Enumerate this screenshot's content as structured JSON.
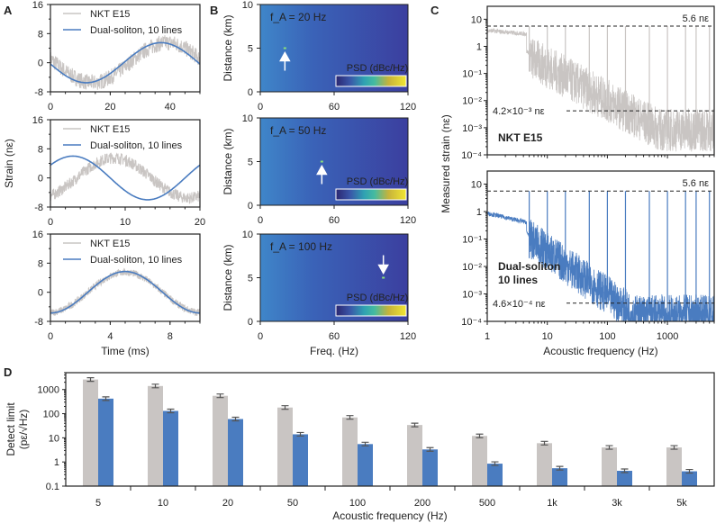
{
  "panels": [
    "A",
    "B",
    "C",
    "D"
  ],
  "chart_data": [
    {
      "id": "A1",
      "type": "line",
      "xlim": [
        0,
        50
      ],
      "ylim": [
        -8,
        16
      ],
      "xticks": [
        "0",
        "20",
        "40"
      ],
      "yticks": [
        "-8",
        "0",
        "8",
        "16"
      ],
      "legend": [
        "NKT E15",
        "Dual-soliton, 10 lines"
      ],
      "legend_position": "top",
      "series": [
        {
          "name": "NKT E15",
          "amplitude": 5.5,
          "period": 50,
          "peak_at": 39,
          "offset": 0,
          "noise": 2.2
        },
        {
          "name": "Dual-soliton, 10 lines",
          "amplitude": 5.5,
          "period": 50,
          "peak_at": 37,
          "offset": 0,
          "noise": 0
        }
      ]
    },
    {
      "id": "A2",
      "type": "line",
      "xlim": [
        0,
        20
      ],
      "ylim": [
        -8,
        16
      ],
      "xticks": [
        "0",
        "10",
        "20"
      ],
      "yticks": [
        "-8",
        "0",
        "8",
        "16"
      ],
      "ylabel": "Strain (nε)",
      "legend": [
        "NKT E15",
        "Dual-soliton, 10 lines"
      ],
      "legend_position": "top",
      "series": [
        {
          "name": "NKT E15",
          "amplitude": 5.5,
          "period": 20,
          "peak_at": 8.5,
          "offset": 0,
          "noise": 1.6
        },
        {
          "name": "Dual-soliton, 10 lines",
          "amplitude": 6,
          "period": 20,
          "peak_at": 3,
          "offset": 0,
          "noise": 0
        }
      ]
    },
    {
      "id": "A3",
      "type": "line",
      "xlim": [
        0,
        10
      ],
      "ylim": [
        -8,
        16
      ],
      "xticks": [
        "0",
        "4",
        "8"
      ],
      "yticks": [
        "-8",
        "0",
        "8",
        "16"
      ],
      "xlabel": "Time (ms)",
      "legend": [
        "NKT E15",
        "Dual-soliton, 10 lines"
      ],
      "legend_position": "top",
      "series": [
        {
          "name": "NKT E15",
          "amplitude": 5.5,
          "period": 10,
          "peak_at": 5,
          "offset": 0,
          "noise": 1.0
        },
        {
          "name": "Dual-soliton, 10 lines",
          "amplitude": 5.7,
          "period": 10,
          "peak_at": 5,
          "offset": 0,
          "noise": 0
        }
      ]
    },
    {
      "id": "B1",
      "type": "heatmap",
      "annotation": "f_A = 20 Hz",
      "f_A_hz": 20,
      "signal_distance_km": 5,
      "xlim": [
        0,
        120
      ],
      "ylim": [
        0,
        10
      ],
      "xticks": [
        "0",
        "60",
        "120"
      ],
      "yticks": [
        "0",
        "5",
        "10"
      ],
      "ylabel": "Distance (km)",
      "colorbar_label": "PSD (dBc/Hz)",
      "arrow": "up"
    },
    {
      "id": "B2",
      "type": "heatmap",
      "annotation": "f_A = 50 Hz",
      "f_A_hz": 50,
      "signal_distance_km": 5,
      "xlim": [
        0,
        120
      ],
      "ylim": [
        0,
        10
      ],
      "xticks": [
        "0",
        "60",
        "120"
      ],
      "yticks": [
        "0",
        "5",
        "10"
      ],
      "ylabel": "Distance (km)",
      "colorbar_label": "PSD (dBc/Hz)",
      "arrow": "up"
    },
    {
      "id": "B3",
      "type": "heatmap",
      "annotation": "f_A = 100 Hz",
      "f_A_hz": 100,
      "signal_distance_km": 5,
      "xlim": [
        0,
        120
      ],
      "ylim": [
        0,
        10
      ],
      "xticks": [
        "0",
        "60",
        "120"
      ],
      "yticks": [
        "0",
        "5",
        "10"
      ],
      "ylabel": "Distance (km)",
      "xlabel": "Freq. (Hz)",
      "colorbar_label": "PSD (dBc/Hz)",
      "arrow": "down"
    },
    {
      "id": "C1",
      "type": "line",
      "xscale": "log",
      "yscale": "log",
      "xlim": [
        1,
        6000
      ],
      "ylim": [
        0.0001,
        30
      ],
      "yticks": [
        "10",
        "1",
        "10⁻¹",
        "10⁻²",
        "10⁻³",
        "10⁻⁴"
      ],
      "series_label": "NKT E15",
      "ref_lines": [
        {
          "value": 5.6,
          "label": "5.6 nε"
        },
        {
          "value": 0.0042,
          "label": "4.2×10⁻³ nε"
        }
      ],
      "peaks_hz": [
        5,
        10,
        20,
        50,
        100,
        200,
        500,
        1000,
        2000,
        3000,
        5000
      ],
      "noise_floor": {
        "start": 0.5,
        "end": 0.0015
      }
    },
    {
      "id": "C2",
      "type": "line",
      "xscale": "log",
      "yscale": "log",
      "xlim": [
        1,
        6000
      ],
      "ylim": [
        0.0001,
        30
      ],
      "xticks": [
        "1",
        "10",
        "100",
        "1000"
      ],
      "yticks": [
        "10",
        "1",
        "10⁻¹",
        "10⁻²",
        "10⁻³",
        "10⁻⁴"
      ],
      "xlabel": "Acoustic frequency (Hz)",
      "ylabel": "Measured strain (nε)",
      "series_label": [
        "Dual-soliton",
        "10 lines"
      ],
      "ref_lines": [
        {
          "value": 5.6,
          "label": "5.6 nε"
        },
        {
          "value": 0.00046,
          "label": "4.6×10⁻⁴ nε"
        }
      ],
      "peaks_hz": [
        5,
        10,
        20,
        50,
        100,
        200,
        500,
        1000,
        2000,
        3000,
        5000
      ],
      "noise_floor": {
        "start": 0.1,
        "end": 0.0002
      }
    },
    {
      "id": "D",
      "type": "bar",
      "yscale": "log",
      "categories": [
        "5",
        "10",
        "20",
        "50",
        "100",
        "200",
        "500",
        "1k",
        "3k",
        "5k"
      ],
      "series": [
        {
          "name": "NKT E15",
          "values": [
            2600,
            1400,
            550,
            180,
            70,
            34,
            12,
            6,
            4,
            4
          ]
        },
        {
          "name": "Dual-soliton, 10 lines",
          "values": [
            420,
            130,
            60,
            14,
            5.5,
            3.3,
            0.85,
            0.55,
            0.43,
            0.41
          ]
        }
      ],
      "ylim": [
        0.1,
        5000
      ],
      "yticks": [
        "0.1",
        "1",
        "10",
        "100",
        "1000"
      ],
      "xlabel": "Acoustic frequency (Hz)",
      "ylabel": [
        "Detect limit",
        "(pε/√Hz)"
      ],
      "error_bars": true
    }
  ],
  "colors": {
    "nkt": "#c9c5c3",
    "dual": "#4a7cc0",
    "nkt_label": "#a9a5a3",
    "dual_label": "#4a7cc0"
  }
}
